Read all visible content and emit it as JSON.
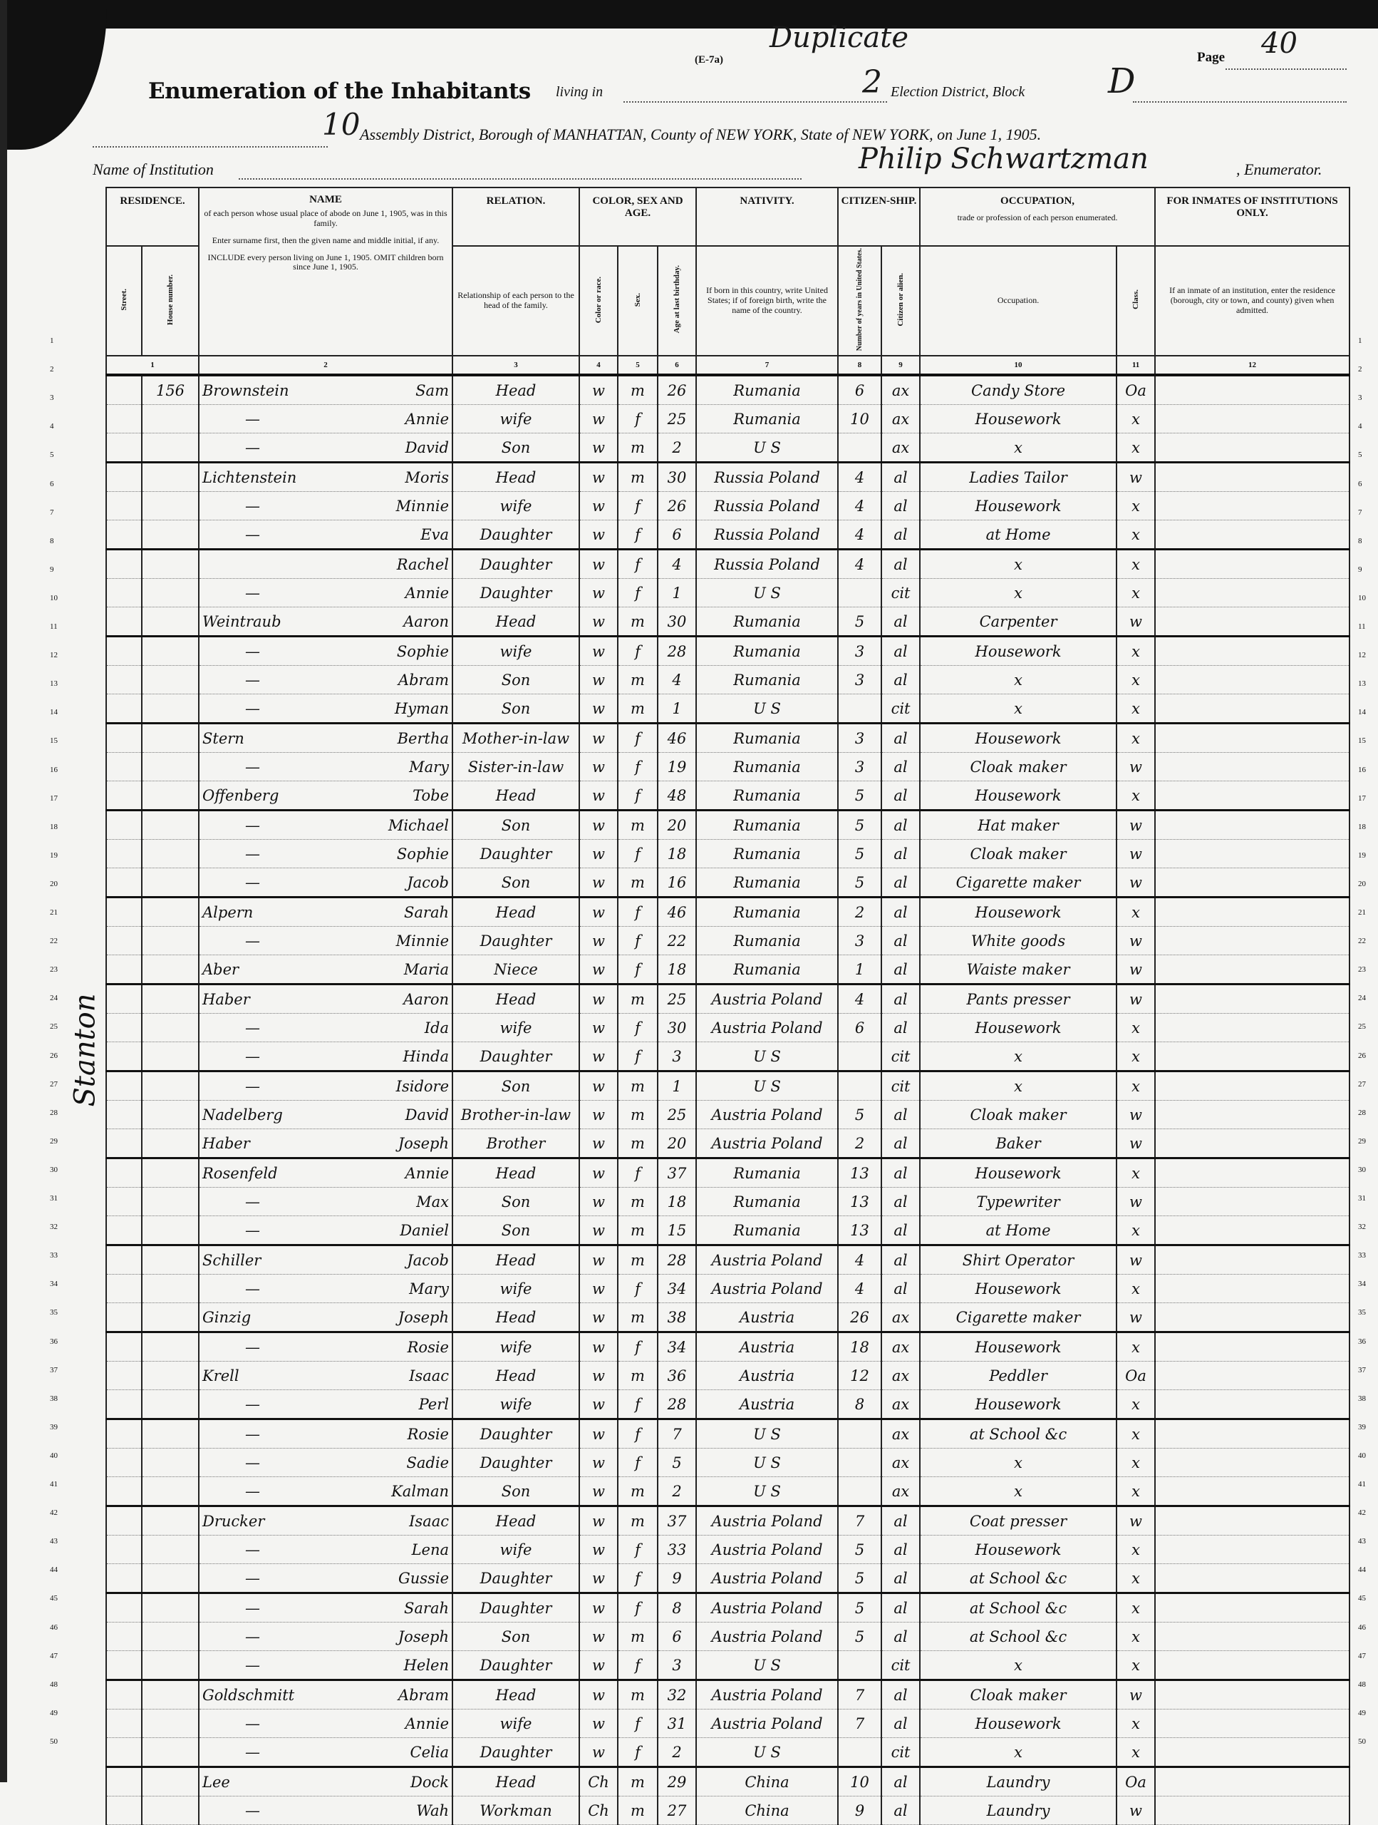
{
  "header": {
    "form_code": "(E-7a)",
    "annotation": "Duplicate",
    "page_label": "Page",
    "page_number": "40",
    "title": "Enumeration of the Inhabitants",
    "living_in": "living in",
    "election_district": "2",
    "election_district_label": "Election District, Block",
    "block": "D",
    "assembly_district": "10",
    "location_line": "Assembly District, Borough of MANHATTAN, County of NEW YORK, State of NEW YORK, on June 1, 1905.",
    "institution_label": "Name of Institution",
    "enumerator_name": "Philip Schwartzman",
    "enumerator_label": ", Enumerator."
  },
  "columns": {
    "residence": "RESIDENCE.",
    "street": "Street.",
    "house_number": "House number.",
    "name": "NAME",
    "name_desc1": "of each person whose usual place of abode on June 1, 1905, was in this family.",
    "name_desc2": "Enter surname first, then the given name and middle initial, if any.",
    "name_desc3": "INCLUDE every person living on June 1, 1905. OMIT children born since June 1, 1905.",
    "relation": "RELATION.",
    "relation_desc": "Relationship of each person to the head of the family.",
    "color_sex_age": "COLOR, SEX AND AGE.",
    "color": "Color or race.",
    "sex": "Sex.",
    "age": "Age at last birthday.",
    "nativity": "NATIVITY.",
    "nativity_desc": "If born in this country, write United States; if of foreign birth, write the name of the country.",
    "citizenship": "CITIZEN-SHIP.",
    "years_in_us": "Number of years in United States.",
    "citizen_or_alien": "Citizen or alien.",
    "occupation": "OCCUPATION,",
    "occupation_desc": "trade or profession of each person enumerated.",
    "occupation_sub": "Occupation.",
    "class": "Class.",
    "institutions": "FOR INMATES OF INSTITUTIONS ONLY.",
    "institutions_desc": "If an inmate of an institution, enter the residence (borough, city or town, and county) given when admitted.",
    "numbers": [
      "1",
      "2",
      "3",
      "4",
      "5",
      "6",
      "7",
      "8",
      "9",
      "10",
      "11",
      "12"
    ]
  },
  "street": "Stanton",
  "rows": [
    {
      "house": "156",
      "surname": "Brownstein",
      "given": "Sam",
      "relation": "Head",
      "color": "w",
      "sex": "m",
      "age": "26",
      "nativity": "Rumania",
      "years": "6",
      "cit": "ax",
      "occupation": "Candy Store",
      "class": "Oa"
    },
    {
      "house": "",
      "surname": "—",
      "given": "Annie",
      "relation": "wife",
      "color": "w",
      "sex": "f",
      "age": "25",
      "nativity": "Rumania",
      "years": "10",
      "cit": "ax",
      "occupation": "Housework",
      "class": "x"
    },
    {
      "house": "",
      "surname": "—",
      "given": "David",
      "relation": "Son",
      "color": "w",
      "sex": "m",
      "age": "2",
      "nativity": "U S",
      "years": "",
      "cit": "ax",
      "occupation": "x",
      "class": "x"
    },
    {
      "house": "",
      "surname": "Lichtenstein",
      "given": "Moris",
      "relation": "Head",
      "color": "w",
      "sex": "m",
      "age": "30",
      "nativity": "Russia Poland",
      "years": "4",
      "cit": "al",
      "occupation": "Ladies Tailor",
      "class": "w"
    },
    {
      "house": "",
      "surname": "—",
      "given": "Minnie",
      "relation": "wife",
      "color": "w",
      "sex": "f",
      "age": "26",
      "nativity": "Russia Poland",
      "years": "4",
      "cit": "al",
      "occupation": "Housework",
      "class": "x"
    },
    {
      "house": "",
      "surname": "—",
      "given": "Eva",
      "relation": "Daughter",
      "color": "w",
      "sex": "f",
      "age": "6",
      "nativity": "Russia Poland",
      "years": "4",
      "cit": "al",
      "occupation": "at Home",
      "class": "x"
    },
    {
      "house": "",
      "surname": "",
      "given": "Rachel",
      "relation": "Daughter",
      "color": "w",
      "sex": "f",
      "age": "4",
      "nativity": "Russia Poland",
      "years": "4",
      "cit": "al",
      "occupation": "x",
      "class": "x"
    },
    {
      "house": "",
      "surname": "—",
      "given": "Annie",
      "relation": "Daughter",
      "color": "w",
      "sex": "f",
      "age": "1",
      "nativity": "U S",
      "years": "",
      "cit": "cit",
      "occupation": "x",
      "class": "x"
    },
    {
      "house": "",
      "surname": "Weintraub",
      "given": "Aaron",
      "relation": "Head",
      "color": "w",
      "sex": "m",
      "age": "30",
      "nativity": "Rumania",
      "years": "5",
      "cit": "al",
      "occupation": "Carpenter",
      "class": "w"
    },
    {
      "house": "",
      "surname": "—",
      "given": "Sophie",
      "relation": "wife",
      "color": "w",
      "sex": "f",
      "age": "28",
      "nativity": "Rumania",
      "years": "3",
      "cit": "al",
      "occupation": "Housework",
      "class": "x"
    },
    {
      "house": "",
      "surname": "—",
      "given": "Abram",
      "relation": "Son",
      "color": "w",
      "sex": "m",
      "age": "4",
      "nativity": "Rumania",
      "years": "3",
      "cit": "al",
      "occupation": "x",
      "class": "x"
    },
    {
      "house": "",
      "surname": "—",
      "given": "Hyman",
      "relation": "Son",
      "color": "w",
      "sex": "m",
      "age": "1",
      "nativity": "U S",
      "years": "",
      "cit": "cit",
      "occupation": "x",
      "class": "x"
    },
    {
      "house": "",
      "surname": "Stern",
      "given": "Bertha",
      "relation": "Mother-in-law",
      "color": "w",
      "sex": "f",
      "age": "46",
      "nativity": "Rumania",
      "years": "3",
      "cit": "al",
      "occupation": "Housework",
      "class": "x"
    },
    {
      "house": "",
      "surname": "—",
      "given": "Mary",
      "relation": "Sister-in-law",
      "color": "w",
      "sex": "f",
      "age": "19",
      "nativity": "Rumania",
      "years": "3",
      "cit": "al",
      "occupation": "Cloak maker",
      "class": "w"
    },
    {
      "house": "",
      "surname": "Offenberg",
      "given": "Tobe",
      "relation": "Head",
      "color": "w",
      "sex": "f",
      "age": "48",
      "nativity": "Rumania",
      "years": "5",
      "cit": "al",
      "occupation": "Housework",
      "class": "x"
    },
    {
      "house": "",
      "surname": "—",
      "given": "Michael",
      "relation": "Son",
      "color": "w",
      "sex": "m",
      "age": "20",
      "nativity": "Rumania",
      "years": "5",
      "cit": "al",
      "occupation": "Hat maker",
      "class": "w"
    },
    {
      "house": "",
      "surname": "—",
      "given": "Sophie",
      "relation": "Daughter",
      "color": "w",
      "sex": "f",
      "age": "18",
      "nativity": "Rumania",
      "years": "5",
      "cit": "al",
      "occupation": "Cloak maker",
      "class": "w"
    },
    {
      "house": "",
      "surname": "—",
      "given": "Jacob",
      "relation": "Son",
      "color": "w",
      "sex": "m",
      "age": "16",
      "nativity": "Rumania",
      "years": "5",
      "cit": "al",
      "occupation": "Cigarette maker",
      "class": "w"
    },
    {
      "house": "",
      "surname": "Alpern",
      "given": "Sarah",
      "relation": "Head",
      "color": "w",
      "sex": "f",
      "age": "46",
      "nativity": "Rumania",
      "years": "2",
      "cit": "al",
      "occupation": "Housework",
      "class": "x"
    },
    {
      "house": "",
      "surname": "—",
      "given": "Minnie",
      "relation": "Daughter",
      "color": "w",
      "sex": "f",
      "age": "22",
      "nativity": "Rumania",
      "years": "3",
      "cit": "al",
      "occupation": "White goods",
      "class": "w"
    },
    {
      "house": "",
      "surname": "Aber",
      "given": "Maria",
      "relation": "Niece",
      "color": "w",
      "sex": "f",
      "age": "18",
      "nativity": "Rumania",
      "years": "1",
      "cit": "al",
      "occupation": "Waiste maker",
      "class": "w"
    },
    {
      "house": "",
      "surname": "Haber",
      "given": "Aaron",
      "relation": "Head",
      "color": "w",
      "sex": "m",
      "age": "25",
      "nativity": "Austria Poland",
      "years": "4",
      "cit": "al",
      "occupation": "Pants presser",
      "class": "w"
    },
    {
      "house": "",
      "surname": "—",
      "given": "Ida",
      "relation": "wife",
      "color": "w",
      "sex": "f",
      "age": "30",
      "nativity": "Austria Poland",
      "years": "6",
      "cit": "al",
      "occupation": "Housework",
      "class": "x"
    },
    {
      "house": "",
      "surname": "—",
      "given": "Hinda",
      "relation": "Daughter",
      "color": "w",
      "sex": "f",
      "age": "3",
      "nativity": "U S",
      "years": "",
      "cit": "cit",
      "occupation": "x",
      "class": "x"
    },
    {
      "house": "",
      "surname": "—",
      "given": "Isidore",
      "relation": "Son",
      "color": "w",
      "sex": "m",
      "age": "1",
      "nativity": "U S",
      "years": "",
      "cit": "cit",
      "occupation": "x",
      "class": "x"
    },
    {
      "house": "",
      "surname": "Nadelberg",
      "given": "David",
      "relation": "Brother-in-law",
      "color": "w",
      "sex": "m",
      "age": "25",
      "nativity": "Austria Poland",
      "years": "5",
      "cit": "al",
      "occupation": "Cloak maker",
      "class": "w"
    },
    {
      "house": "",
      "surname": "Haber",
      "given": "Joseph",
      "relation": "Brother",
      "color": "w",
      "sex": "m",
      "age": "20",
      "nativity": "Austria Poland",
      "years": "2",
      "cit": "al",
      "occupation": "Baker",
      "class": "w"
    },
    {
      "house": "",
      "surname": "Rosenfeld",
      "given": "Annie",
      "relation": "Head",
      "color": "w",
      "sex": "f",
      "age": "37",
      "nativity": "Rumania",
      "years": "13",
      "cit": "al",
      "occupation": "Housework",
      "class": "x"
    },
    {
      "house": "",
      "surname": "—",
      "given": "Max",
      "relation": "Son",
      "color": "w",
      "sex": "m",
      "age": "18",
      "nativity": "Rumania",
      "years": "13",
      "cit": "al",
      "occupation": "Typewriter",
      "class": "w"
    },
    {
      "house": "",
      "surname": "—",
      "given": "Daniel",
      "relation": "Son",
      "color": "w",
      "sex": "m",
      "age": "15",
      "nativity": "Rumania",
      "years": "13",
      "cit": "al",
      "occupation": "at Home",
      "class": "x"
    },
    {
      "house": "",
      "surname": "Schiller",
      "given": "Jacob",
      "relation": "Head",
      "color": "w",
      "sex": "m",
      "age": "28",
      "nativity": "Austria Poland",
      "years": "4",
      "cit": "al",
      "occupation": "Shirt Operator",
      "class": "w"
    },
    {
      "house": "",
      "surname": "—",
      "given": "Mary",
      "relation": "wife",
      "color": "w",
      "sex": "f",
      "age": "34",
      "nativity": "Austria Poland",
      "years": "4",
      "cit": "al",
      "occupation": "Housework",
      "class": "x"
    },
    {
      "house": "",
      "surname": "Ginzig",
      "given": "Joseph",
      "relation": "Head",
      "color": "w",
      "sex": "m",
      "age": "38",
      "nativity": "Austria",
      "years": "26",
      "cit": "ax",
      "occupation": "Cigarette maker",
      "class": "w"
    },
    {
      "house": "",
      "surname": "—",
      "given": "Rosie",
      "relation": "wife",
      "color": "w",
      "sex": "f",
      "age": "34",
      "nativity": "Austria",
      "years": "18",
      "cit": "ax",
      "occupation": "Housework",
      "class": "x"
    },
    {
      "house": "",
      "surname": "Krell",
      "given": "Isaac",
      "relation": "Head",
      "color": "w",
      "sex": "m",
      "age": "36",
      "nativity": "Austria",
      "years": "12",
      "cit": "ax",
      "occupation": "Peddler",
      "class": "Oa"
    },
    {
      "house": "",
      "surname": "—",
      "given": "Perl",
      "relation": "wife",
      "color": "w",
      "sex": "f",
      "age": "28",
      "nativity": "Austria",
      "years": "8",
      "cit": "ax",
      "occupation": "Housework",
      "class": "x"
    },
    {
      "house": "",
      "surname": "—",
      "given": "Rosie",
      "relation": "Daughter",
      "color": "w",
      "sex": "f",
      "age": "7",
      "nativity": "U S",
      "years": "",
      "cit": "ax",
      "occupation": "at School &c",
      "class": "x"
    },
    {
      "house": "",
      "surname": "—",
      "given": "Sadie",
      "relation": "Daughter",
      "color": "w",
      "sex": "f",
      "age": "5",
      "nativity": "U S",
      "years": "",
      "cit": "ax",
      "occupation": "x",
      "class": "x"
    },
    {
      "house": "",
      "surname": "—",
      "given": "Kalman",
      "relation": "Son",
      "color": "w",
      "sex": "m",
      "age": "2",
      "nativity": "U S",
      "years": "",
      "cit": "ax",
      "occupation": "x",
      "class": "x"
    },
    {
      "house": "",
      "surname": "Drucker",
      "given": "Isaac",
      "relation": "Head",
      "color": "w",
      "sex": "m",
      "age": "37",
      "nativity": "Austria Poland",
      "years": "7",
      "cit": "al",
      "occupation": "Coat presser",
      "class": "w"
    },
    {
      "house": "",
      "surname": "—",
      "given": "Lena",
      "relation": "wife",
      "color": "w",
      "sex": "f",
      "age": "33",
      "nativity": "Austria Poland",
      "years": "5",
      "cit": "al",
      "occupation": "Housework",
      "class": "x"
    },
    {
      "house": "",
      "surname": "—",
      "given": "Gussie",
      "relation": "Daughter",
      "color": "w",
      "sex": "f",
      "age": "9",
      "nativity": "Austria Poland",
      "years": "5",
      "cit": "al",
      "occupation": "at School &c",
      "class": "x"
    },
    {
      "house": "",
      "surname": "—",
      "given": "Sarah",
      "relation": "Daughter",
      "color": "w",
      "sex": "f",
      "age": "8",
      "nativity": "Austria Poland",
      "years": "5",
      "cit": "al",
      "occupation": "at School &c",
      "class": "x"
    },
    {
      "house": "",
      "surname": "—",
      "given": "Joseph",
      "relation": "Son",
      "color": "w",
      "sex": "m",
      "age": "6",
      "nativity": "Austria Poland",
      "years": "5",
      "cit": "al",
      "occupation": "at School &c",
      "class": "x"
    },
    {
      "house": "",
      "surname": "—",
      "given": "Helen",
      "relation": "Daughter",
      "color": "w",
      "sex": "f",
      "age": "3",
      "nativity": "U S",
      "years": "",
      "cit": "cit",
      "occupation": "x",
      "class": "x"
    },
    {
      "house": "",
      "surname": "Goldschmitt",
      "given": "Abram",
      "relation": "Head",
      "color": "w",
      "sex": "m",
      "age": "32",
      "nativity": "Austria Poland",
      "years": "7",
      "cit": "al",
      "occupation": "Cloak maker",
      "class": "w"
    },
    {
      "house": "",
      "surname": "—",
      "given": "Annie",
      "relation": "wife",
      "color": "w",
      "sex": "f",
      "age": "31",
      "nativity": "Austria Poland",
      "years": "7",
      "cit": "al",
      "occupation": "Housework",
      "class": "x"
    },
    {
      "house": "",
      "surname": "—",
      "given": "Celia",
      "relation": "Daughter",
      "color": "w",
      "sex": "f",
      "age": "2",
      "nativity": "U S",
      "years": "",
      "cit": "cit",
      "occupation": "x",
      "class": "x"
    },
    {
      "house": "",
      "surname": "Lee",
      "given": "Dock",
      "relation": "Head",
      "color": "Ch",
      "sex": "m",
      "age": "29",
      "nativity": "China",
      "years": "10",
      "cit": "al",
      "occupation": "Laundry",
      "class": "Oa"
    },
    {
      "house": "",
      "surname": "—",
      "given": "Wah",
      "relation": "Workman",
      "color": "Ch",
      "sex": "m",
      "age": "27",
      "nativity": "China",
      "years": "9",
      "cit": "al",
      "occupation": "Laundry",
      "class": "w"
    }
  ]
}
